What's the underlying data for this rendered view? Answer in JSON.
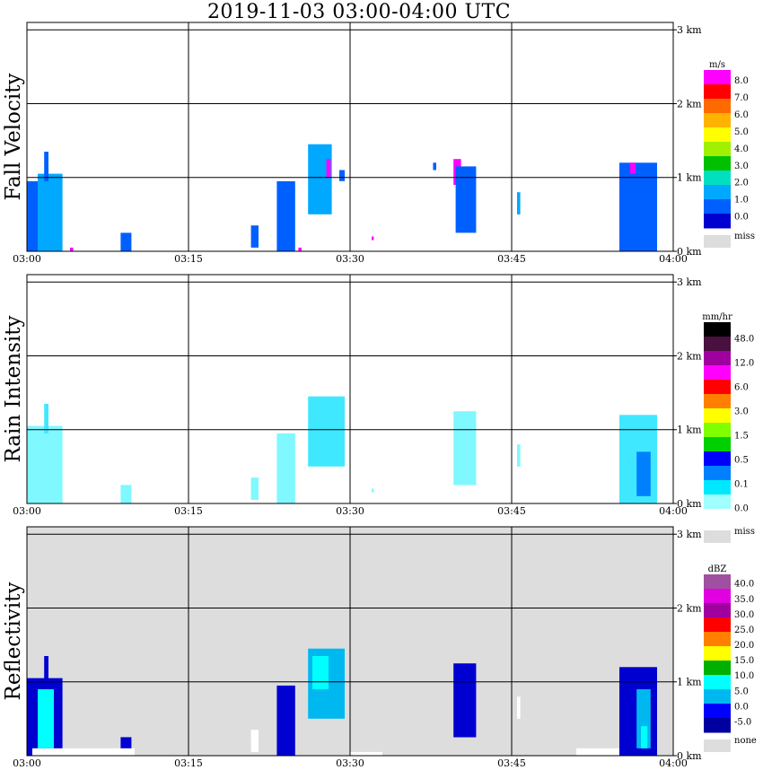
{
  "title": "2019-11-03   03:00-04:00 UTC",
  "x_ticks": [
    "03:00",
    "03:15",
    "03:30",
    "03:45",
    "04:00"
  ],
  "alt_ticks": [
    "0 km",
    "1 km",
    "2 km",
    "3 km"
  ],
  "chart_data": [
    {
      "type": "heatmap",
      "ylabel": "Fall Velocity",
      "xlim": [
        "03:00",
        "04:00"
      ],
      "ylim_km": [
        0,
        3.1
      ],
      "grid": true,
      "background": "#ffffff",
      "colorbar": {
        "unit": "m/s",
        "labels": [
          "8.0",
          "7.0",
          "6.0",
          "5.0",
          "4.0",
          "3.0",
          "2.0",
          "1.0",
          "0.0",
          "miss"
        ],
        "colors": [
          "#ff00ff",
          "#ff0000",
          "#ff6a00",
          "#ffb300",
          "#ffff00",
          "#a0f000",
          "#00c000",
          "#00e0c0",
          "#00a8ff",
          "#0060ff",
          "#0000d0"
        ],
        "miss_color": "#dddddd"
      },
      "echoes": [
        {
          "t0": "03:00.0",
          "t1": "03:01.5",
          "z0": 0.0,
          "z1": 0.95,
          "value": "1.5",
          "color": "#0060ff"
        },
        {
          "t0": "03:01.0",
          "t1": "03:03.3",
          "z0": 0.0,
          "z1": 1.05,
          "value": "2.2",
          "color": "#00a8ff"
        },
        {
          "t0": "03:01.6",
          "t1": "03:02.0",
          "z0": 0.95,
          "z1": 1.35,
          "value": "1.5",
          "color": "#0060ff"
        },
        {
          "t0": "03:04.0",
          "t1": "03:04.3",
          "z0": 0.0,
          "z1": 0.05,
          "value": "8.0",
          "color": "#ff00ff"
        },
        {
          "t0": "03:08.7",
          "t1": "03:09.7",
          "z0": 0.0,
          "z1": 0.25,
          "value": "1.5",
          "color": "#0060ff"
        },
        {
          "t0": "03:20.8",
          "t1": "03:21.5",
          "z0": 0.05,
          "z1": 0.35,
          "value": "1.5",
          "color": "#0060ff"
        },
        {
          "t0": "03:23.2",
          "t1": "03:24.9",
          "z0": 0.0,
          "z1": 0.95,
          "value": "1.5",
          "color": "#0060ff"
        },
        {
          "t0": "03:25.2",
          "t1": "03:25.5",
          "z0": 0.0,
          "z1": 0.05,
          "value": "8.0",
          "color": "#ff00ff"
        },
        {
          "t0": "03:26.1",
          "t1": "03:28.3",
          "z0": 0.5,
          "z1": 1.45,
          "value": "2.2",
          "color": "#00a8ff"
        },
        {
          "t0": "03:27.8",
          "t1": "03:28.2",
          "z0": 1.0,
          "z1": 1.25,
          "value": "8.0",
          "color": "#ff00ff"
        },
        {
          "t0": "03:29.0",
          "t1": "03:29.5",
          "z0": 0.95,
          "z1": 1.1,
          "value": "1.5",
          "color": "#0060ff"
        },
        {
          "t0": "03:32.0",
          "t1": "03:32.2",
          "z0": 0.15,
          "z1": 0.2,
          "value": "8.0",
          "color": "#ff00ff"
        },
        {
          "t0": "03:37.7",
          "t1": "03:38.0",
          "z0": 1.1,
          "z1": 1.2,
          "value": "1.5",
          "color": "#0060ff"
        },
        {
          "t0": "03:39.6",
          "t1": "03:40.3",
          "z0": 0.9,
          "z1": 1.25,
          "value": "8.0",
          "color": "#ff00ff"
        },
        {
          "t0": "03:39.8",
          "t1": "03:41.7",
          "z0": 0.25,
          "z1": 1.15,
          "value": "1.5",
          "color": "#0060ff"
        },
        {
          "t0": "03:45.5",
          "t1": "03:45.8",
          "z0": 0.5,
          "z1": 0.8,
          "value": "2.2",
          "color": "#00a8ff"
        },
        {
          "t0": "03:55.0",
          "t1": "03:58.5",
          "z0": 0.0,
          "z1": 1.2,
          "value": "1.5",
          "color": "#0060ff"
        },
        {
          "t0": "03:56.0",
          "t1": "03:56.5",
          "z0": 1.05,
          "z1": 1.2,
          "value": "8.0",
          "color": "#ff00ff"
        }
      ]
    },
    {
      "type": "heatmap",
      "ylabel": "Rain Intensity",
      "xlim": [
        "03:00",
        "04:00"
      ],
      "ylim_km": [
        0,
        3.1
      ],
      "grid": true,
      "background": "#ffffff",
      "colorbar": {
        "unit": "mm/hr",
        "labels": [
          "48.0",
          "12.0",
          "6.0",
          "3.0",
          "1.5",
          "0.5",
          "0.1",
          "0.0",
          "miss"
        ],
        "colors": [
          "#000000",
          "#4a1040",
          "#a000a0",
          "#ff00ff",
          "#ff0000",
          "#ff7f00",
          "#ffff00",
          "#80ff00",
          "#00d000",
          "#0000ff",
          "#0080ff",
          "#00e8ff",
          "#a0ffff",
          "#ffffff"
        ],
        "miss_color": "#dddddd"
      },
      "echoes": [
        {
          "t0": "03:00.0",
          "t1": "03:03.3",
          "z0": 0.0,
          "z1": 1.05,
          "value": "0.1",
          "color": "#7ff8ff"
        },
        {
          "t0": "03:01.6",
          "t1": "03:02.0",
          "z0": 0.95,
          "z1": 1.35,
          "value": "0.3",
          "color": "#40e8ff"
        },
        {
          "t0": "03:08.7",
          "t1": "03:09.7",
          "z0": 0.0,
          "z1": 0.25,
          "value": "0.1",
          "color": "#7ff8ff"
        },
        {
          "t0": "03:20.8",
          "t1": "03:21.5",
          "z0": 0.05,
          "z1": 0.35,
          "value": "0.1",
          "color": "#7ff8ff"
        },
        {
          "t0": "03:23.2",
          "t1": "03:24.9",
          "z0": 0.0,
          "z1": 0.95,
          "value": "0.1",
          "color": "#7ff8ff"
        },
        {
          "t0": "03:26.1",
          "t1": "03:29.5",
          "z0": 0.5,
          "z1": 1.45,
          "value": "0.3",
          "color": "#40e8ff"
        },
        {
          "t0": "03:32.0",
          "t1": "03:32.2",
          "z0": 0.15,
          "z1": 0.2,
          "value": "0.1",
          "color": "#7ff8ff"
        },
        {
          "t0": "03:39.6",
          "t1": "03:41.7",
          "z0": 0.25,
          "z1": 1.25,
          "value": "0.1",
          "color": "#7ff8ff"
        },
        {
          "t0": "03:45.5",
          "t1": "03:45.8",
          "z0": 0.5,
          "z1": 0.8,
          "value": "0.1",
          "color": "#7ff8ff"
        },
        {
          "t0": "03:55.0",
          "t1": "03:58.5",
          "z0": 0.0,
          "z1": 1.2,
          "value": "0.3",
          "color": "#40e8ff"
        },
        {
          "t0": "03:56.6",
          "t1": "03:57.9",
          "z0": 0.1,
          "z1": 0.7,
          "value": "0.8",
          "color": "#0080ff"
        }
      ]
    },
    {
      "type": "heatmap",
      "ylabel": "Reflectivity",
      "xlim": [
        "03:00",
        "04:00"
      ],
      "ylim_km": [
        0,
        3.1
      ],
      "grid": true,
      "background": "#dddddd",
      "colorbar": {
        "unit": "dBZ",
        "labels": [
          "40.0",
          "35.0",
          "30.0",
          "25.0",
          "20.0",
          "15.0",
          "10.0",
          "5.0",
          "0.0",
          "-5.0",
          "none"
        ],
        "colors": [
          "#a050a0",
          "#e000e0",
          "#a000a0",
          "#ff0000",
          "#ff7f00",
          "#ffff00",
          "#00b000",
          "#00ffff",
          "#00b8f0",
          "#0000ff",
          "#0000a0"
        ],
        "miss_color": "#dddddd"
      },
      "echoes": [
        {
          "t0": "03:00.0",
          "t1": "03:03.3",
          "z0": 0.0,
          "z1": 1.05,
          "value": "-2.0",
          "color": "#0000d0"
        },
        {
          "t0": "03:01.0",
          "t1": "03:02.5",
          "z0": 0.1,
          "z1": 0.9,
          "value": "6.0",
          "color": "#00ffff"
        },
        {
          "t0": "03:01.6",
          "t1": "03:02.0",
          "z0": 0.95,
          "z1": 1.35,
          "value": "-2.0",
          "color": "#0000d0"
        },
        {
          "t0": "03:08.7",
          "t1": "03:09.7",
          "z0": 0.0,
          "z1": 0.25,
          "value": "-2.0",
          "color": "#0000d0"
        },
        {
          "t0": "03:20.8",
          "t1": "03:21.5",
          "z0": 0.05,
          "z1": 0.35,
          "value": "none",
          "color": "#ffffff"
        },
        {
          "t0": "03:23.2",
          "t1": "03:24.9",
          "z0": 0.0,
          "z1": 0.95,
          "value": "-2.0",
          "color": "#0000d0"
        },
        {
          "t0": "03:26.1",
          "t1": "03:29.5",
          "z0": 0.5,
          "z1": 1.45,
          "value": "3.0",
          "color": "#00b8f0"
        },
        {
          "t0": "03:26.5",
          "t1": "03:28.0",
          "z0": 0.9,
          "z1": 1.35,
          "value": "8.0",
          "color": "#00ffff"
        },
        {
          "t0": "03:39.6",
          "t1": "03:41.7",
          "z0": 0.25,
          "z1": 1.25,
          "value": "-2.0",
          "color": "#0000d0"
        },
        {
          "t0": "03:45.5",
          "t1": "03:45.8",
          "z0": 0.5,
          "z1": 0.8,
          "value": "none",
          "color": "#ffffff"
        },
        {
          "t0": "03:55.0",
          "t1": "03:58.5",
          "z0": 0.0,
          "z1": 1.2,
          "value": "-2.0",
          "color": "#0000d0"
        },
        {
          "t0": "03:56.6",
          "t1": "03:57.9",
          "z0": 0.1,
          "z1": 0.9,
          "value": "3.0",
          "color": "#00b8f0"
        },
        {
          "t0": "03:57.0",
          "t1": "03:57.6",
          "z0": 0.1,
          "z1": 0.4,
          "value": "10.0",
          "color": "#00ffff"
        },
        {
          "t0": "03:00.5",
          "t1": "03:10.0",
          "z0": 0.0,
          "z1": 0.1,
          "value": "none",
          "color": "#ffffff"
        },
        {
          "t0": "03:30.0",
          "t1": "03:33.0",
          "z0": 0.0,
          "z1": 0.05,
          "value": "none",
          "color": "#ffffff"
        },
        {
          "t0": "03:51.0",
          "t1": "03:55.0",
          "z0": 0.0,
          "z1": 0.1,
          "value": "none",
          "color": "#ffffff"
        }
      ]
    }
  ]
}
